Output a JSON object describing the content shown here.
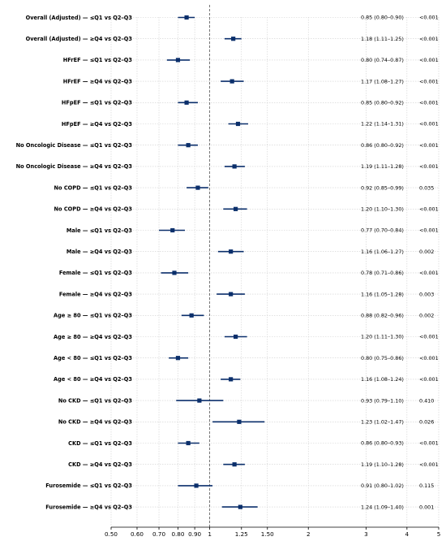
{
  "chart_data": {
    "type": "forest",
    "xscale": "log",
    "xlim": [
      0.5,
      5
    ],
    "xticks": [
      {
        "value": 0.5,
        "label": "0.50"
      },
      {
        "value": 0.6,
        "label": "0.60"
      },
      {
        "value": 0.7,
        "label": "0.70"
      },
      {
        "value": 0.8,
        "label": "0.80"
      },
      {
        "value": 0.9,
        "label": "0.90"
      },
      {
        "value": 1.0,
        "label": "1"
      },
      {
        "value": 1.25,
        "label": "1.25"
      },
      {
        "value": 1.5,
        "label": "1.50"
      },
      {
        "value": 2.0,
        "label": "2"
      },
      {
        "value": 3.0,
        "label": "3"
      },
      {
        "value": 4.0,
        "label": "4"
      },
      {
        "value": 5.0,
        "label": "5"
      }
    ],
    "reference_line": 1,
    "grid": true,
    "colors": {
      "marker": "#0b2f6b",
      "reference": "#555555",
      "grid": "#cfcfcf"
    },
    "rows": [
      {
        "label": "Overall (Adjusted) — ≤Q1 vs Q2–Q3",
        "est": 0.85,
        "lo": 0.8,
        "hi": 0.9,
        "ci_text": "0.85 (0.80–0.90)",
        "p": "<0.001"
      },
      {
        "label": "Overall (Adjusted) — ≥Q4 vs Q2–Q3",
        "est": 1.18,
        "lo": 1.11,
        "hi": 1.25,
        "ci_text": "1.18 (1.11–1.25)",
        "p": "<0.001"
      },
      {
        "label": "HFrEF — ≤Q1 vs Q2–Q3",
        "est": 0.8,
        "lo": 0.74,
        "hi": 0.87,
        "ci_text": "0.80 (0.74–0.87)",
        "p": "<0.001"
      },
      {
        "label": "HFrEF — ≥Q4 vs Q2–Q3",
        "est": 1.17,
        "lo": 1.08,
        "hi": 1.27,
        "ci_text": "1.17 (1.08–1.27)",
        "p": "<0.001"
      },
      {
        "label": "HFpEF — ≤Q1 vs Q2–Q3",
        "est": 0.85,
        "lo": 0.8,
        "hi": 0.92,
        "ci_text": "0.85 (0.80–0.92)",
        "p": "<0.001"
      },
      {
        "label": "HFpEF — ≥Q4 vs Q2–Q3",
        "est": 1.22,
        "lo": 1.14,
        "hi": 1.31,
        "ci_text": "1.22 (1.14–1.31)",
        "p": "<0.001"
      },
      {
        "label": "No Oncologic Disease — ≤Q1 vs Q2–Q3",
        "est": 0.86,
        "lo": 0.8,
        "hi": 0.92,
        "ci_text": "0.86 (0.80–0.92)",
        "p": "<0.001"
      },
      {
        "label": "No Oncologic Disease — ≥Q4 vs Q2–Q3",
        "est": 1.19,
        "lo": 1.11,
        "hi": 1.28,
        "ci_text": "1.19 (1.11–1.28)",
        "p": "<0.001"
      },
      {
        "label": "No COPD — ≤Q1 vs Q2–Q3",
        "est": 0.92,
        "lo": 0.85,
        "hi": 0.99,
        "ci_text": "0.92 (0.85–0.99)",
        "p": "0.035"
      },
      {
        "label": "No COPD — ≥Q4 vs Q2–Q3",
        "est": 1.2,
        "lo": 1.1,
        "hi": 1.3,
        "ci_text": "1.20 (1.10–1.30)",
        "p": "<0.001"
      },
      {
        "label": "Male — ≤Q1 vs Q2–Q3",
        "est": 0.77,
        "lo": 0.7,
        "hi": 0.84,
        "ci_text": "0.77 (0.70–0.84)",
        "p": "<0.001"
      },
      {
        "label": "Male — ≥Q4 vs Q2–Q3",
        "est": 1.16,
        "lo": 1.06,
        "hi": 1.27,
        "ci_text": "1.16 (1.06–1.27)",
        "p": "0.002"
      },
      {
        "label": "Female — ≤Q1 vs Q2–Q3",
        "est": 0.78,
        "lo": 0.71,
        "hi": 0.86,
        "ci_text": "0.78 (0.71–0.86)",
        "p": "<0.001"
      },
      {
        "label": "Female — ≥Q4 vs Q2–Q3",
        "est": 1.16,
        "lo": 1.05,
        "hi": 1.28,
        "ci_text": "1.16 (1.05–1.28)",
        "p": "0.003"
      },
      {
        "label": "Age ≥ 80 — ≤Q1 vs Q2–Q3",
        "est": 0.88,
        "lo": 0.82,
        "hi": 0.96,
        "ci_text": "0.88 (0.82–0.96)",
        "p": "0.002"
      },
      {
        "label": "Age ≥ 80 — ≥Q4 vs Q2–Q3",
        "est": 1.2,
        "lo": 1.11,
        "hi": 1.3,
        "ci_text": "1.20 (1.11–1.30)",
        "p": "<0.001"
      },
      {
        "label": "Age < 80 — ≤Q1 vs Q2–Q3",
        "est": 0.8,
        "lo": 0.75,
        "hi": 0.86,
        "ci_text": "0.80 (0.75–0.86)",
        "p": "<0.001"
      },
      {
        "label": "Age < 80 — ≥Q4 vs Q2–Q3",
        "est": 1.16,
        "lo": 1.08,
        "hi": 1.24,
        "ci_text": "1.16 (1.08–1.24)",
        "p": "<0.001"
      },
      {
        "label": "No CKD — ≤Q1 vs Q2–Q3",
        "est": 0.93,
        "lo": 0.79,
        "hi": 1.1,
        "ci_text": "0.93 (0.79–1.10)",
        "p": "0.410"
      },
      {
        "label": "No CKD — ≥Q4 vs Q2–Q3",
        "est": 1.23,
        "lo": 1.02,
        "hi": 1.47,
        "ci_text": "1.23 (1.02–1.47)",
        "p": "0.026"
      },
      {
        "label": "CKD — ≤Q1 vs Q2–Q3",
        "est": 0.86,
        "lo": 0.8,
        "hi": 0.93,
        "ci_text": "0.86 (0.80–0.93)",
        "p": "<0.001"
      },
      {
        "label": "CKD — ≥Q4 vs Q2–Q3",
        "est": 1.19,
        "lo": 1.1,
        "hi": 1.28,
        "ci_text": "1.19 (1.10–1.28)",
        "p": "<0.001"
      },
      {
        "label": "Furosemide — ≤Q1 vs Q2–Q3",
        "est": 0.91,
        "lo": 0.8,
        "hi": 1.02,
        "ci_text": "0.91 (0.80–1.02)",
        "p": "0.115"
      },
      {
        "label": "Furosemide — ≥Q4 vs Q2–Q3",
        "est": 1.24,
        "lo": 1.09,
        "hi": 1.4,
        "ci_text": "1.24 (1.09–1.40)",
        "p": "0.001"
      }
    ]
  }
}
